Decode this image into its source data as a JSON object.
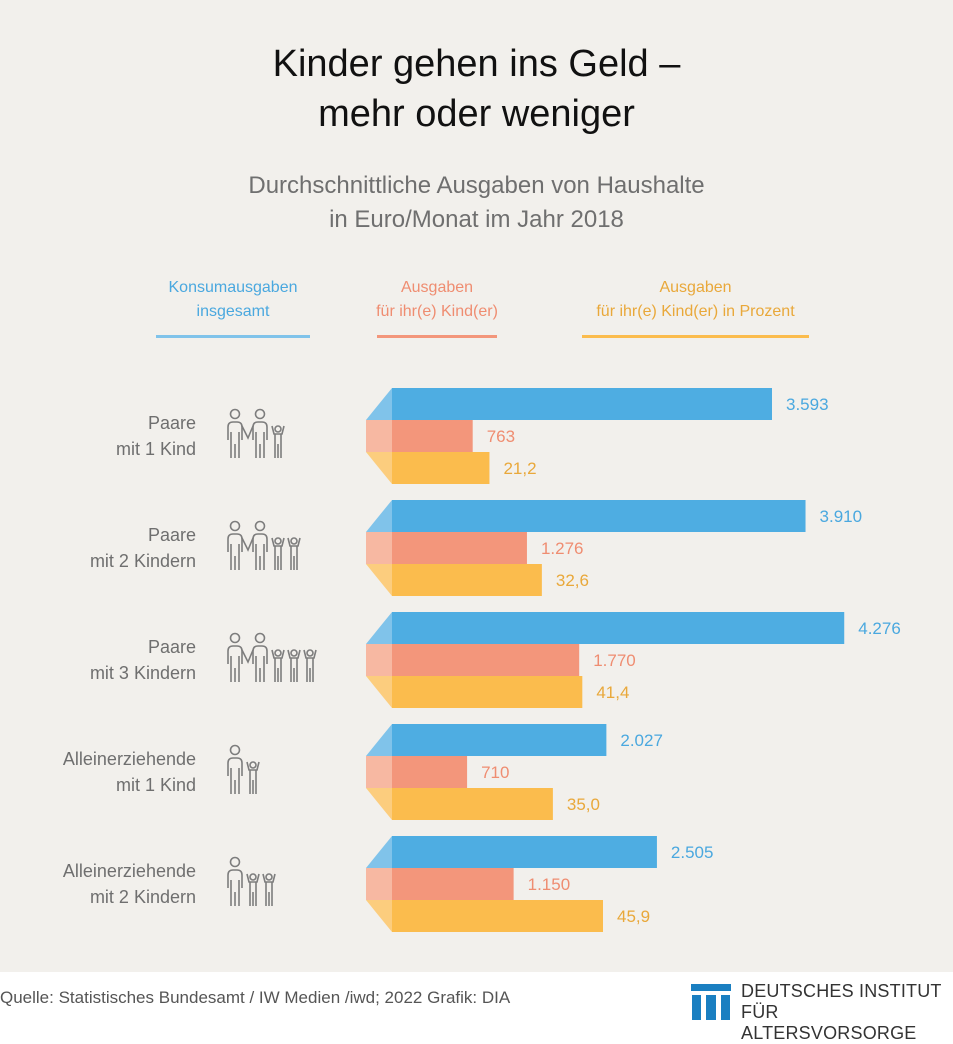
{
  "title_lines": [
    "Kinder gehen ins Geld –",
    "mehr oder weniger"
  ],
  "subtitle_lines": [
    "Durchschnittliche Ausgaben von Haushalte",
    "in Euro/Monat im Jahr 2018"
  ],
  "colors": {
    "background": "#f2f0ec",
    "blue": "#4eade2",
    "blue_light": "#80c3ea",
    "salmon": "#f3967b",
    "salmon_light": "#f7b8a2",
    "yellow": "#fbbc4d",
    "yellow_light": "#fccd7e",
    "blue_text": "#4aa8df",
    "salmon_text": "#ef8d71",
    "yellow_text": "#e9a83a",
    "label_gray": "#6f6f6f"
  },
  "legend": [
    {
      "line1": "Konsumausgaben",
      "line2": "insgesamt"
    },
    {
      "line1": "Ausgaben",
      "line2": "für ihr(e) Kind(er)"
    },
    {
      "line1": "Ausgaben",
      "line2": "für ihr(e) Kind(er) in Prozent"
    }
  ],
  "chart_data": {
    "type": "bar",
    "orientation": "horizontal",
    "title": "Kinder gehen ins Geld – mehr oder weniger",
    "subtitle": "Durchschnittliche Ausgaben von Haushalte in Euro/Monat im Jahr 2018",
    "categories": [
      [
        "Paare",
        "mit 1 Kind"
      ],
      [
        "Paare",
        "mit 2 Kindern"
      ],
      [
        "Paare",
        "mit 3 Kindern"
      ],
      [
        "Alleinerziehende",
        "mit 1 Kind"
      ],
      [
        "Alleinerziehende",
        "mit 2 Kindern"
      ]
    ],
    "icons": [
      {
        "adults": 2,
        "children": 1
      },
      {
        "adults": 2,
        "children": 2
      },
      {
        "adults": 2,
        "children": 3
      },
      {
        "adults": 1,
        "children": 1
      },
      {
        "adults": 1,
        "children": 2
      }
    ],
    "series": [
      {
        "name": "Konsumausgaben insgesamt",
        "unit": "EUR",
        "values": [
          3593,
          3910,
          4276,
          2027,
          2505
        ],
        "labels": [
          "3.593",
          "3.910",
          "4.276",
          "2.027",
          "2.505"
        ]
      },
      {
        "name": "Ausgaben für ihr(e) Kind(er)",
        "unit": "EUR",
        "values": [
          763,
          1276,
          1770,
          710,
          1150
        ],
        "labels": [
          "763",
          "1.276",
          "1.770",
          "710",
          "1.150"
        ]
      },
      {
        "name": "Ausgaben für ihr(e) Kind(er) in Prozent",
        "unit": "%",
        "values": [
          21.2,
          32.6,
          41.4,
          35.0,
          45.9
        ],
        "labels": [
          "21,2",
          "32,6",
          "41,4",
          "35,0",
          "45,9"
        ]
      }
    ],
    "legend_position": "top",
    "grid": false
  },
  "footer": {
    "source": "Quelle: Statistisches Bundesamt / IW Medien /iwd; 2022  Grafik: DIA",
    "logo_line1": "DEUTSCHES INSTITUT",
    "logo_line2": "FÜR ALTERSVORSORGE"
  }
}
